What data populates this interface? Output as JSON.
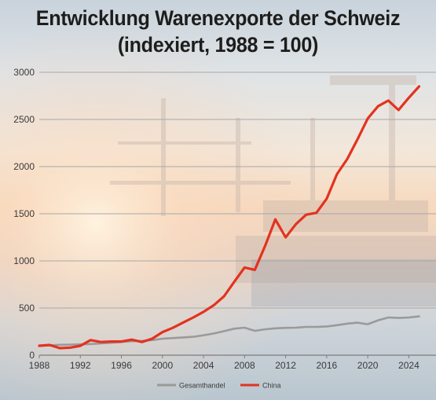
{
  "title_line1": "Entwicklung Warenexporte der Schweiz",
  "title_line2": "(indexiert, 1988 = 100)",
  "chart_data": {
    "type": "line",
    "title": "Entwicklung Warenexporte der Schweiz (indexiert, 1988 = 100)",
    "xlabel": "",
    "ylabel": "",
    "ylim": [
      0,
      3000
    ],
    "xlim": [
      1988,
      2025
    ],
    "grid": true,
    "legend_position": "bottom",
    "y_ticks": [
      0,
      500,
      1000,
      1500,
      2000,
      2500,
      3000
    ],
    "y_tick_labels": [
      "0",
      "500",
      "1000",
      "1500",
      "2000",
      "2500",
      "3000"
    ],
    "x_ticks": [
      1988,
      1992,
      1996,
      2000,
      2004,
      2008,
      2012,
      2016,
      2020,
      2024
    ],
    "x_tick_labels": [
      "1988",
      "1992",
      "1996",
      "2000",
      "2004",
      "2008",
      "2012",
      "2016",
      "2020",
      "2024"
    ],
    "x": [
      1988,
      1989,
      1990,
      1991,
      1992,
      1993,
      1994,
      1995,
      1996,
      1997,
      1998,
      1999,
      2000,
      2001,
      2002,
      2003,
      2004,
      2005,
      2006,
      2007,
      2008,
      2009,
      2010,
      2011,
      2012,
      2013,
      2014,
      2015,
      2016,
      2017,
      2018,
      2019,
      2020,
      2021,
      2022,
      2023,
      2024,
      2025
    ],
    "series": [
      {
        "name": "Gesamthandel",
        "color": "#9a9a9a",
        "values": [
          100,
          105,
          110,
          112,
          115,
          118,
          125,
          132,
          140,
          148,
          152,
          160,
          175,
          182,
          188,
          195,
          212,
          230,
          255,
          282,
          292,
          258,
          275,
          285,
          290,
          292,
          300,
          300,
          305,
          318,
          335,
          345,
          328,
          370,
          400,
          395,
          400,
          412
        ]
      },
      {
        "name": "China",
        "color": "#e3321f",
        "values": [
          100,
          108,
          75,
          80,
          100,
          160,
          140,
          145,
          145,
          165,
          140,
          175,
          245,
          290,
          345,
          400,
          460,
          530,
          625,
          780,
          930,
          905,
          1160,
          1440,
          1250,
          1390,
          1490,
          1510,
          1660,
          1920,
          2080,
          2290,
          2510,
          2640,
          2700,
          2600,
          2730,
          2850
        ]
      }
    ]
  }
}
